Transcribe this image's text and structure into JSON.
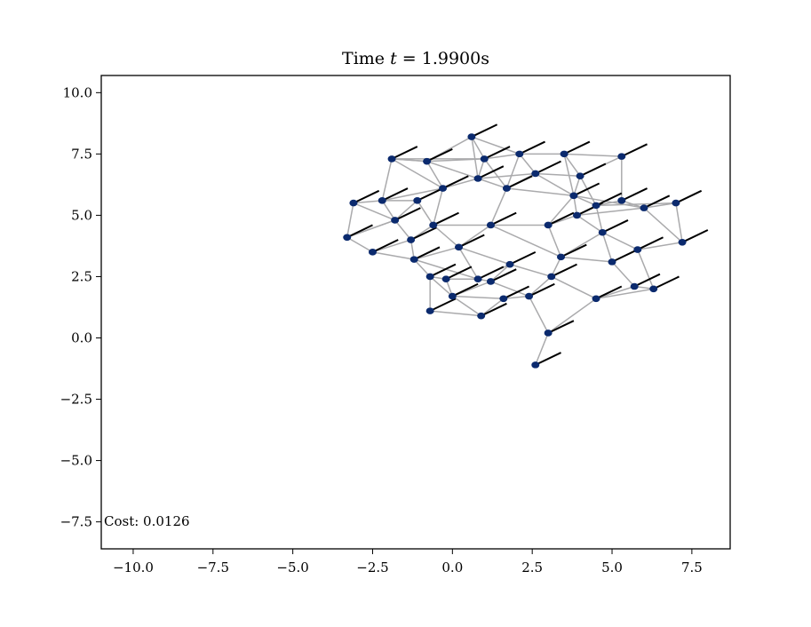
{
  "chart_data": {
    "type": "scatter",
    "title": "Time t = 1.9900s",
    "title_parts": {
      "prefix": "Time ",
      "var": "t",
      "suffix": " = 1.9900s"
    },
    "xlabel": "",
    "ylabel": "",
    "xlim": [
      -11.0,
      8.7
    ],
    "ylim": [
      -8.6,
      10.7
    ],
    "xticks": [
      -10.0,
      -7.5,
      -5.0,
      -2.5,
      0.0,
      2.5,
      5.0,
      7.5
    ],
    "xtick_labels": [
      "−10.0",
      "−7.5",
      "−5.0",
      "−2.5",
      "0.0",
      "2.5",
      "5.0",
      "7.5"
    ],
    "yticks": [
      10.0,
      7.5,
      5.0,
      2.5,
      0.0,
      -2.5,
      -5.0,
      -7.5
    ],
    "ytick_labels": [
      "10.0",
      "7.5",
      "5.0",
      "2.5",
      "0.0",
      "−2.5",
      "−5.0",
      "−7.5"
    ],
    "grid": false,
    "annotation": "Cost: 0.0126",
    "colors": {
      "node": "#0b2a6e",
      "edge": "#aaaaac",
      "arrow": "#000000",
      "axes": "#000000"
    },
    "heading_vector": [
      0.8,
      0.5
    ],
    "nodes": [
      [
        0.6,
        8.2
      ],
      [
        -1.9,
        7.3
      ],
      [
        -0.8,
        7.2
      ],
      [
        1.0,
        7.3
      ],
      [
        2.1,
        7.5
      ],
      [
        3.5,
        7.5
      ],
      [
        5.3,
        7.4
      ],
      [
        0.8,
        6.5
      ],
      [
        2.6,
        6.7
      ],
      [
        4.0,
        6.6
      ],
      [
        -0.3,
        6.1
      ],
      [
        1.7,
        6.1
      ],
      [
        3.8,
        5.8
      ],
      [
        -3.1,
        5.5
      ],
      [
        -2.2,
        5.6
      ],
      [
        -1.1,
        5.6
      ],
      [
        4.5,
        5.4
      ],
      [
        5.3,
        5.6
      ],
      [
        6.0,
        5.3
      ],
      [
        7.0,
        5.5
      ],
      [
        -1.8,
        4.8
      ],
      [
        -0.6,
        4.6
      ],
      [
        1.2,
        4.6
      ],
      [
        3.0,
        4.6
      ],
      [
        3.9,
        5.0
      ],
      [
        4.7,
        4.3
      ],
      [
        -3.3,
        4.1
      ],
      [
        -1.3,
        4.0
      ],
      [
        0.2,
        3.7
      ],
      [
        7.2,
        3.9
      ],
      [
        -2.5,
        3.5
      ],
      [
        -1.2,
        3.2
      ],
      [
        3.4,
        3.3
      ],
      [
        5.8,
        3.6
      ],
      [
        1.8,
        3.0
      ],
      [
        5.0,
        3.1
      ],
      [
        -0.7,
        2.5
      ],
      [
        0.8,
        2.4
      ],
      [
        -0.2,
        2.4
      ],
      [
        1.2,
        2.3
      ],
      [
        3.1,
        2.5
      ],
      [
        5.7,
        2.1
      ],
      [
        6.3,
        2.0
      ],
      [
        0.0,
        1.7
      ],
      [
        2.4,
        1.7
      ],
      [
        4.5,
        1.6
      ],
      [
        -0.7,
        1.1
      ],
      [
        0.9,
        0.9
      ],
      [
        1.6,
        1.6
      ],
      [
        3.0,
        0.2
      ],
      [
        2.6,
        -1.1
      ]
    ],
    "edges": [
      [
        0,
        3
      ],
      [
        0,
        7
      ],
      [
        0,
        2
      ],
      [
        1,
        2
      ],
      [
        1,
        14
      ],
      [
        1,
        10
      ],
      [
        1,
        3
      ],
      [
        2,
        3
      ],
      [
        2,
        10
      ],
      [
        2,
        7
      ],
      [
        3,
        4
      ],
      [
        3,
        11
      ],
      [
        3,
        7
      ],
      [
        4,
        5
      ],
      [
        4,
        8
      ],
      [
        4,
        11
      ],
      [
        5,
        6
      ],
      [
        5,
        9
      ],
      [
        5,
        12
      ],
      [
        6,
        9
      ],
      [
        6,
        17
      ],
      [
        7,
        8
      ],
      [
        7,
        10
      ],
      [
        7,
        11
      ],
      [
        8,
        9
      ],
      [
        8,
        11
      ],
      [
        9,
        12
      ],
      [
        9,
        16
      ],
      [
        10,
        15
      ],
      [
        10,
        21
      ],
      [
        10,
        14
      ],
      [
        11,
        22
      ],
      [
        11,
        8
      ],
      [
        12,
        16
      ],
      [
        12,
        24
      ],
      [
        12,
        23
      ],
      [
        13,
        14
      ],
      [
        13,
        26
      ],
      [
        13,
        20
      ],
      [
        14,
        15
      ],
      [
        14,
        20
      ],
      [
        15,
        21
      ],
      [
        15,
        20
      ],
      [
        16,
        17
      ],
      [
        16,
        25
      ],
      [
        16,
        24
      ],
      [
        17,
        18
      ],
      [
        18,
        19
      ],
      [
        18,
        29
      ],
      [
        18,
        24
      ],
      [
        19,
        29
      ],
      [
        20,
        27
      ],
      [
        20,
        26
      ],
      [
        21,
        22
      ],
      [
        21,
        27
      ],
      [
        22,
        23
      ],
      [
        22,
        28
      ],
      [
        23,
        24
      ],
      [
        23,
        32
      ],
      [
        24,
        25
      ],
      [
        25,
        33
      ],
      [
        25,
        35
      ],
      [
        26,
        30
      ],
      [
        27,
        31
      ],
      [
        27,
        30
      ],
      [
        28,
        34
      ],
      [
        28,
        31
      ],
      [
        29,
        33
      ],
      [
        30,
        31
      ],
      [
        31,
        36
      ],
      [
        31,
        37
      ],
      [
        32,
        40
      ],
      [
        32,
        35
      ],
      [
        33,
        35
      ],
      [
        33,
        42
      ],
      [
        34,
        37
      ],
      [
        34,
        39
      ],
      [
        34,
        40
      ],
      [
        35,
        41
      ],
      [
        36,
        38
      ],
      [
        36,
        46
      ],
      [
        37,
        38
      ],
      [
        37,
        39
      ],
      [
        38,
        43
      ],
      [
        39,
        44
      ],
      [
        39,
        43
      ],
      [
        40,
        44
      ],
      [
        40,
        45
      ],
      [
        41,
        42
      ],
      [
        41,
        45
      ],
      [
        42,
        45
      ],
      [
        43,
        47
      ],
      [
        43,
        48
      ],
      [
        44,
        48
      ],
      [
        44,
        49
      ],
      [
        45,
        49
      ],
      [
        46,
        47
      ],
      [
        47,
        48
      ],
      [
        49,
        50
      ],
      [
        22,
        32
      ],
      [
        28,
        37
      ],
      [
        36,
        43
      ],
      [
        21,
        28
      ],
      [
        26,
        20
      ],
      [
        12,
        18
      ],
      [
        32,
        25
      ],
      [
        11,
        12
      ],
      [
        8,
        12
      ],
      [
        0,
        4
      ],
      [
        2,
        1
      ],
      [
        19,
        16
      ]
    ]
  }
}
